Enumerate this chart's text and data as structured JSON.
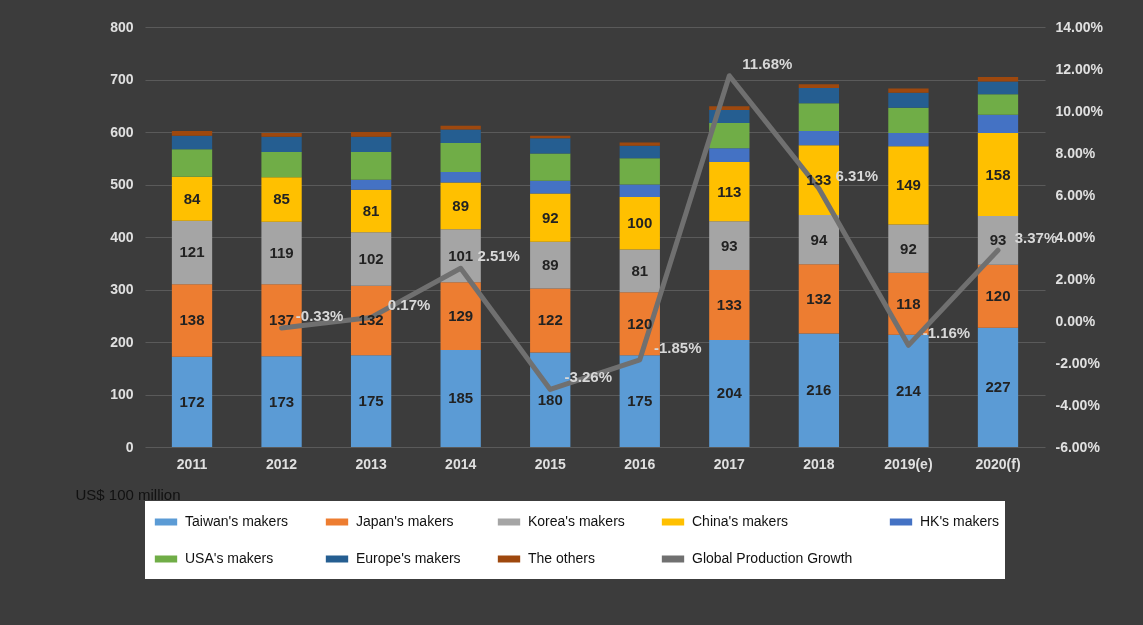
{
  "chart_data": {
    "type": "bar",
    "stacked": true,
    "ylabel": "US$ 100 million",
    "categories": [
      "2011",
      "2012",
      "2013",
      "2014",
      "2015",
      "2016",
      "2017",
      "2018",
      "2019(e)",
      "2020(f)"
    ],
    "series": [
      {
        "name": "Taiwan's makers",
        "type": "bar",
        "color": "#5b9bd5",
        "values": [
          172,
          173,
          175,
          185,
          180,
          175,
          204,
          216,
          214,
          227
        ],
        "value_labels": [
          "172",
          "173",
          "175",
          "185",
          "180",
          "175",
          "204",
          "216",
          "214",
          "227"
        ]
      },
      {
        "name": "Japan's makers",
        "type": "bar",
        "color": "#ed7d31",
        "values": [
          138,
          137,
          132,
          129,
          122,
          120,
          133,
          132,
          118,
          120
        ],
        "value_labels": [
          "138",
          "137",
          "132",
          "129",
          "122",
          "120",
          "133",
          "132",
          "118",
          "120"
        ]
      },
      {
        "name": "Korea's makers",
        "type": "bar",
        "color": "#a5a5a5",
        "values": [
          121,
          119,
          102,
          101,
          89,
          81,
          93,
          94,
          92,
          93
        ],
        "value_labels": [
          "121",
          "119",
          "102",
          "101",
          "89",
          "81",
          "93",
          "94",
          "92",
          "93"
        ]
      },
      {
        "name": "China's makers",
        "type": "bar",
        "color": "#ffc000",
        "values": [
          84,
          85,
          81,
          89,
          92,
          100,
          113,
          133,
          149,
          158
        ],
        "value_labels": [
          "84",
          "85",
          "81",
          "89",
          "92",
          "100",
          "113",
          "133",
          "149",
          "158"
        ]
      },
      {
        "name": "HK's makers",
        "type": "bar",
        "color": "#4472c4",
        "values": [
          0,
          0,
          19,
          20,
          24,
          24,
          26,
          27,
          25,
          35
        ]
      },
      {
        "name": "USA's makers",
        "type": "bar",
        "color": "#70ad47",
        "values": [
          52,
          48,
          53,
          55,
          52,
          50,
          48,
          53,
          48,
          39
        ]
      },
      {
        "name": "Europe's makers",
        "type": "bar",
        "color": "#255e91",
        "values": [
          26,
          29,
          29,
          26,
          29,
          24,
          25,
          29,
          29,
          24
        ]
      },
      {
        "name": "The others",
        "type": "bar",
        "color": "#9e480e",
        "values": [
          9,
          7,
          9,
          7,
          5,
          6,
          7,
          7,
          8,
          9
        ]
      },
      {
        "name": "Global Production Growth",
        "type": "line",
        "axis": "y2",
        "color": "#707070",
        "values": [
          null,
          -0.33,
          0.17,
          2.51,
          -3.26,
          -1.85,
          11.68,
          6.31,
          -1.16,
          3.37
        ],
        "value_labels": [
          null,
          "-0.33%",
          "0.17%",
          "2.51%",
          "-3.26%",
          "-1.85%",
          "11.68%",
          "6.31%",
          "-1.16%",
          "3.37%"
        ]
      }
    ],
    "ylim": [
      0,
      800
    ],
    "yticks": [
      0,
      100,
      200,
      300,
      400,
      500,
      600,
      700,
      800
    ],
    "y2lim": [
      -6,
      14
    ],
    "y2ticks": [
      {
        "value": -6,
        "label": "-6.00%"
      },
      {
        "value": -4,
        "label": "-4.00%"
      },
      {
        "value": -2,
        "label": "-2.00%"
      },
      {
        "value": 0,
        "label": "0.00%"
      },
      {
        "value": 2,
        "label": "2.00%"
      },
      {
        "value": 4,
        "label": "4.00%"
      },
      {
        "value": 6,
        "label": "6.00%"
      },
      {
        "value": 8,
        "label": "8.00%"
      },
      {
        "value": 10,
        "label": "10.00%"
      },
      {
        "value": 12,
        "label": "12.00%"
      },
      {
        "value": 14,
        "label": "14.00%"
      }
    ],
    "grid": "y",
    "legend": "bottom",
    "marker": "none",
    "line_style": "solid"
  }
}
